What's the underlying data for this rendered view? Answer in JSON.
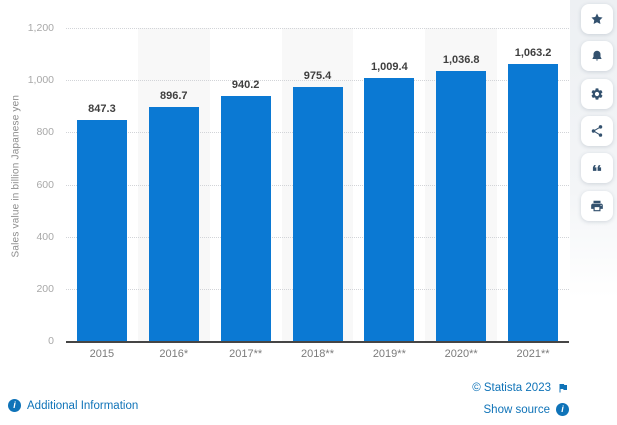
{
  "chart_data": {
    "type": "bar",
    "categories": [
      "2015",
      "2016*",
      "2017**",
      "2018**",
      "2019**",
      "2020**",
      "2021**"
    ],
    "values": [
      847.3,
      896.7,
      940.2,
      975.4,
      1009.4,
      1036.8,
      1063.2
    ],
    "value_labels": [
      "847.3",
      "896.7",
      "940.2",
      "975.4",
      "1,009.4",
      "1,036.8",
      "1,063.2"
    ],
    "title": "",
    "xlabel": "",
    "ylabel": "Sales value in billion Japanese yen",
    "ylim": [
      0,
      1200
    ],
    "ytick_values": [
      0,
      200,
      400,
      600,
      800,
      1000,
      1200
    ],
    "ytick_labels": [
      "0",
      "200",
      "400",
      "600",
      "800",
      "1,000",
      "1,200"
    ],
    "grid": "dotted horizontal gridlines",
    "legend": false,
    "bar_color": "#0b79d3",
    "band_color": "#f8f8f8",
    "banded_columns": [
      1,
      3,
      5
    ]
  },
  "toolbar": {
    "icon_color": "#33516e",
    "items": [
      {
        "name": "favorite",
        "icon": "star-icon"
      },
      {
        "name": "alert",
        "icon": "bell-icon"
      },
      {
        "name": "settings",
        "icon": "gear-icon"
      },
      {
        "name": "share",
        "icon": "share-icon"
      },
      {
        "name": "cite",
        "icon": "quote-icon"
      },
      {
        "name": "print",
        "icon": "printer-icon"
      }
    ]
  },
  "footer": {
    "additional_information": "Additional Information",
    "copyright": "© Statista 2023",
    "show_source": "Show source",
    "link_color": "#0f73b8"
  }
}
